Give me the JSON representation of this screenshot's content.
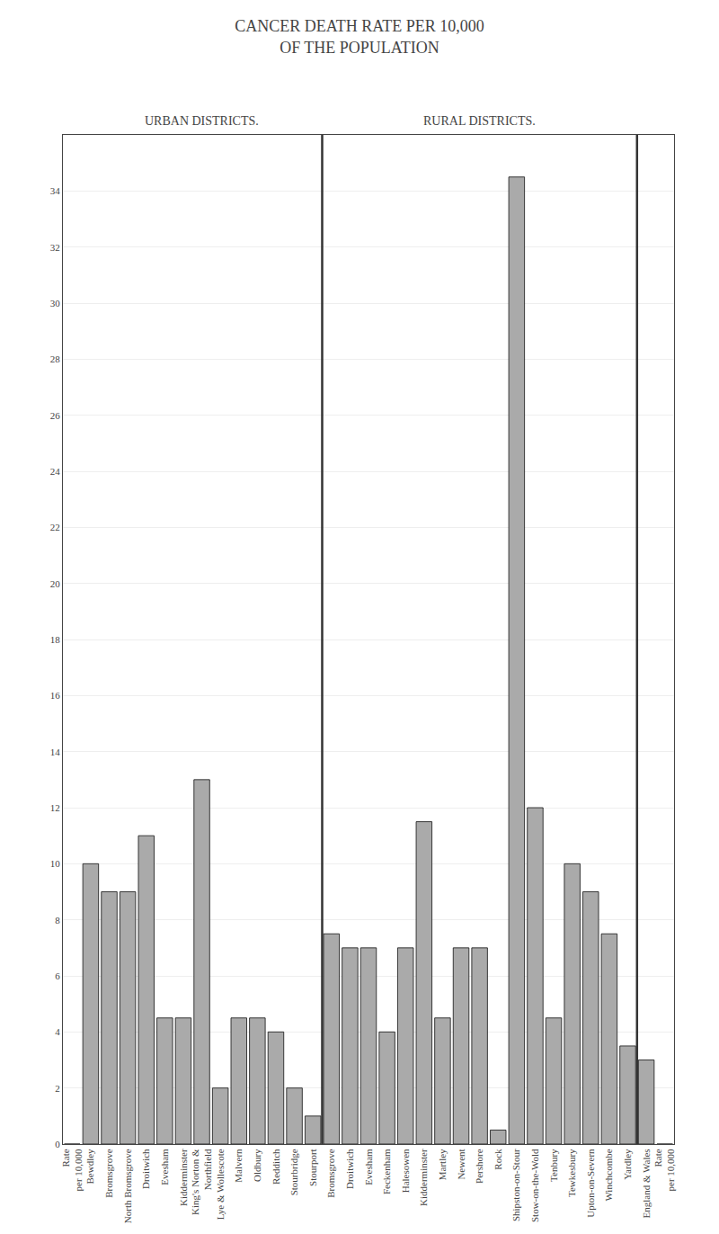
{
  "chart_data": {
    "type": "bar",
    "title": "CANCER DEATH RATE PER 10,000\nOF THE POPULATION",
    "categories": [
      "Rate\nper 10,000",
      "Bewdley",
      "Bromsgrove",
      "North Bromsgrove",
      "Droitwich",
      "Evesham",
      "Kidderminster",
      "King's Norton &\nNorthfield",
      "Lye & Wollescote",
      "Malvern",
      "Oldbury",
      "Redditch",
      "Stourbridge",
      "Stourport",
      "Bromsgrove",
      "Droitwich",
      "Evesham",
      "Feckenham",
      "Halesowen",
      "Kidderminster",
      "Martley",
      "Newent",
      "Pershore",
      "Rock",
      "Shipston-on-Stour",
      "Stow-on-the-Wold",
      "Tenbury",
      "Tewkesbury",
      "Upton-on-Severn",
      "Winchcombe",
      "Yardley",
      "England & Wales",
      "Rate\nper 10,000"
    ],
    "values": [
      0,
      10.0,
      9.0,
      9.0,
      11.0,
      4.5,
      4.5,
      13.0,
      2.0,
      4.5,
      4.5,
      4.0,
      2.0,
      1.0,
      7.5,
      7.0,
      7.0,
      4.0,
      7.0,
      11.5,
      4.5,
      7.0,
      7.0,
      0.5,
      34.5,
      12.0,
      4.5,
      10.0,
      9.0,
      7.5,
      3.5,
      3.0,
      0
    ],
    "color": "#aaaaaa",
    "ylim": [
      0,
      36
    ],
    "yticks": [
      0,
      2,
      4,
      6,
      8,
      10,
      12,
      14,
      16,
      18,
      20,
      22,
      24,
      26,
      28,
      30,
      32,
      34
    ],
    "grid": true,
    "annotations": [
      {
        "text": "URBAN DISTRICTS.",
        "from": 1,
        "to": 13
      },
      {
        "text": "RURAL DISTRICTS.",
        "from": 14,
        "to": 30
      }
    ]
  }
}
